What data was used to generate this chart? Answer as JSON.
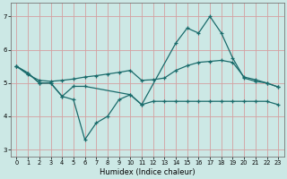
{
  "xlabel": "Humidex (Indice chaleur)",
  "bg_color": "#cce8e5",
  "grid_color": "#d4a0a0",
  "line_color": "#1a6b6b",
  "ylim": [
    2.8,
    7.4
  ],
  "xlim": [
    -0.5,
    23.5
  ],
  "yticks": [
    3,
    4,
    5,
    6,
    7
  ],
  "xticks": [
    0,
    1,
    2,
    3,
    4,
    5,
    6,
    7,
    8,
    9,
    10,
    11,
    12,
    13,
    14,
    15,
    16,
    17,
    18,
    19,
    20,
    21,
    22,
    23
  ],
  "s1_x": [
    0,
    1,
    2,
    3,
    4,
    5,
    6,
    7,
    8,
    9,
    10,
    11,
    12,
    13,
    14,
    15,
    16,
    17,
    18,
    19,
    20,
    21,
    22,
    23
  ],
  "s1_y": [
    5.5,
    5.3,
    5.0,
    5.0,
    4.6,
    4.5,
    3.3,
    3.8,
    4.0,
    4.5,
    4.65,
    4.35,
    4.45,
    4.45,
    4.45,
    4.45,
    4.45,
    4.45,
    4.45,
    4.45,
    4.45,
    4.45,
    4.45,
    4.35
  ],
  "s2_x": [
    0,
    1,
    2,
    3,
    4,
    5,
    6,
    7,
    8,
    9,
    10,
    11,
    12,
    13,
    14,
    15,
    16,
    17,
    18,
    19,
    20,
    21,
    22,
    23
  ],
  "s2_y": [
    5.5,
    5.25,
    5.08,
    5.05,
    5.08,
    5.12,
    5.18,
    5.22,
    5.27,
    5.32,
    5.38,
    5.08,
    5.1,
    5.15,
    5.38,
    5.52,
    5.62,
    5.65,
    5.68,
    5.62,
    5.18,
    5.1,
    5.0,
    4.88
  ],
  "s3_x": [
    0,
    1,
    2,
    3,
    4,
    5,
    6,
    10,
    11,
    14,
    15,
    16,
    17,
    18,
    19,
    20,
    21,
    22,
    23
  ],
  "s3_y": [
    5.5,
    5.3,
    5.0,
    5.0,
    4.6,
    4.9,
    4.9,
    4.65,
    4.35,
    6.2,
    6.65,
    6.5,
    7.0,
    6.5,
    5.75,
    5.15,
    5.05,
    5.0,
    4.88
  ]
}
